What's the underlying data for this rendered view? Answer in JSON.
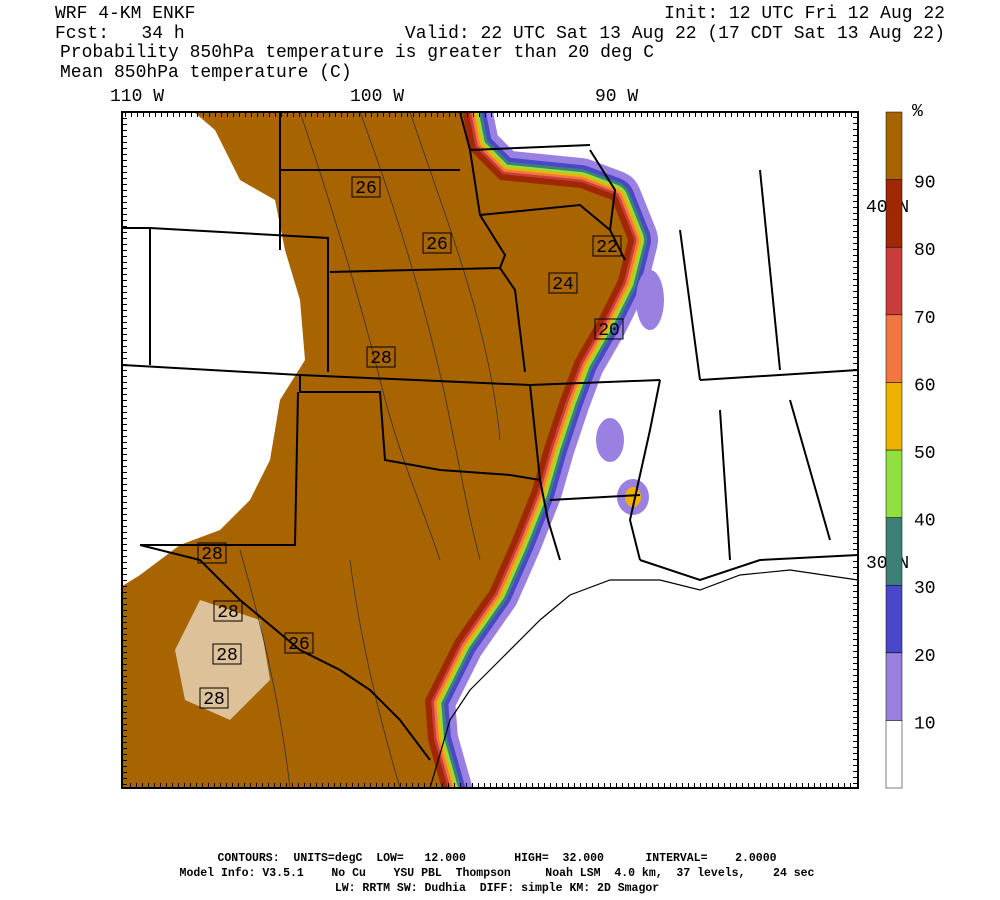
{
  "header": {
    "model": "WRF 4-KM ENKF",
    "init": "Init: 12 UTC Fri 12 Aug 22",
    "forecast": "Fcst:   34 h",
    "valid": "Valid: 22 UTC Sat 13 Aug 22 (17 CDT Sat 13 Aug 22)",
    "shaded": "Probability 850hPa temperature is greater than 20 deg C",
    "contours": "Mean 850hPa temperature (C)"
  },
  "map": {
    "longitude_labels": [
      "110 W",
      "100 W",
      "90 W"
    ],
    "latitude_labels": [
      "40 N",
      "30 N"
    ],
    "contour_labels": [
      "26",
      "26",
      "22",
      "24",
      "20",
      "28",
      "28",
      "28",
      "26",
      "28",
      "28"
    ]
  },
  "colorbar": {
    "unit": "%",
    "ticks": [
      10,
      20,
      30,
      40,
      50,
      60,
      70,
      80,
      90
    ],
    "colors": [
      "#ffffff",
      "#9a80e0",
      "#4848c8",
      "#3c8078",
      "#90e040",
      "#f0b000",
      "#f07840",
      "#c83c3c",
      "#a02800",
      "#a86400"
    ]
  },
  "footer": {
    "lines": [
      "CONTOURS:  UNITS=degC  LOW=   12.000       HIGH=  32.000      INTERVAL=    2.0000",
      "Model Info: V3.5.1    No Cu    YSU PBL  Thompson     Noah LSM  4.0 km,  37 levels,    24 sec",
      "LW: RRTM SW: Dudhia  DIFF: simple KM: 2D Smagor"
    ]
  }
}
